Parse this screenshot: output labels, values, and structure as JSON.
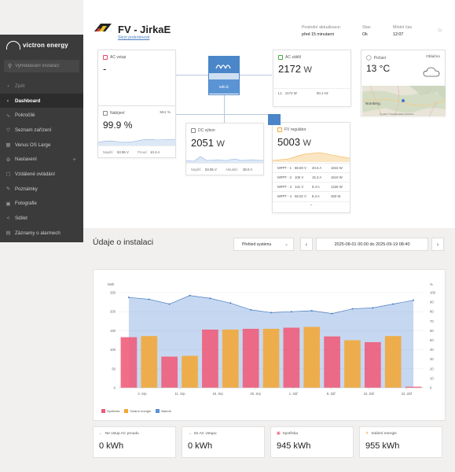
{
  "brand": {
    "logo_text": "victron energy"
  },
  "search": {
    "placeholder": "Vyhledávání instalací"
  },
  "nav": {
    "items": [
      {
        "label": "Zpět",
        "icon": "chevron-left-icon"
      },
      {
        "label": "Dashboard",
        "icon": "dashboard-icon"
      },
      {
        "label": "Pokročilé",
        "icon": "chart-icon"
      },
      {
        "label": "Seznam zařízení",
        "icon": "list-icon"
      },
      {
        "label": "Venus OS Large",
        "icon": "grid-icon"
      },
      {
        "label": "Nastavení",
        "icon": "gear-icon"
      },
      {
        "label": "Vzdálené ovládání",
        "icon": "remote-icon"
      },
      {
        "label": "Poznámky",
        "icon": "note-icon"
      },
      {
        "label": "Fotografie",
        "icon": "photo-icon"
      },
      {
        "label": "Sdílet",
        "icon": "share-icon"
      },
      {
        "label": "Záznamy o alarmech",
        "icon": "alarm-icon"
      }
    ]
  },
  "site": {
    "title": "FV - JirkaE",
    "link": "Skrýt podrobnosti",
    "last_update_label": "Poslední aktualizace:",
    "last_update_value": "před 15 minutami",
    "status_label": "Stav",
    "status_value": "Ok",
    "local_time_label": "Místní čas",
    "local_time_value": "12:07"
  },
  "cards": {
    "ac_input": {
      "label": "AC vstup",
      "value": "-"
    },
    "ac_loads": {
      "label": "AC zátěž",
      "value": "2172",
      "unit": "W",
      "row": [
        "L1",
        "2172 W",
        "50.1 Hz"
      ]
    },
    "location": {
      "label": "Počasí",
      "condition": "Oblačno",
      "temp": "13 °C",
      "map_city": "Nürnberg",
      "map_attribution": "© Leaflet, © OpenStreetMap contributors"
    },
    "battery": {
      "label": "Nabíjení",
      "aux": "561 %",
      "value": "99.9 %",
      "voltage_label": "Napětí",
      "voltage": "53.95 V",
      "current_label": "Proud",
      "current": "10.4 A"
    },
    "dc_system": {
      "label": "DC výkon",
      "value": "2051",
      "unit": "W",
      "voltage_label": "Napětí",
      "voltage": "53.95 V",
      "current_label": "Aktuální",
      "current": "38.0 A"
    },
    "pv": {
      "label": "FV regulátor",
      "value": "5003",
      "unit": "W",
      "rows": [
        [
          "MPPT - 1",
          "88.69 V",
          "20.6 A",
          "1843 W"
        ],
        [
          "MPPT - 2",
          "105 V",
          "15.3 A",
          "1610 W"
        ],
        [
          "MPPT - 3",
          "131 V",
          "9.4 A",
          "1226 W"
        ],
        [
          "MPPT - 4",
          "58.02 V",
          "8.3 A",
          "483 W"
        ]
      ]
    },
    "inverter": {
      "label": "Měnič"
    }
  },
  "section": {
    "title": "Údaje o instalaci",
    "view_select": "Přehled systému",
    "date_range": "2025-08-01 00:00 do 2025-09-19 08:40"
  },
  "chart_data": {
    "type": "bar",
    "ylabel_left": "kWh",
    "ylabel_right": "%",
    "ylim": [
      0,
      250
    ],
    "ylim_right": [
      0,
      100
    ],
    "y_ticks": [
      0,
      50,
      100,
      150,
      200,
      250
    ],
    "y_ticks_right": [
      0,
      10,
      20,
      30,
      40,
      50,
      60,
      70,
      80,
      90,
      100
    ],
    "x_ticks": [
      "4. Srp",
      "11. Srp",
      "18. Srp",
      "25. Srp",
      "1. Zář",
      "8. Zář",
      "15. Zář",
      "22. Zář"
    ],
    "series": [
      {
        "name": "Spotřeba",
        "color": "#f05a78",
        "values": [
          133,
          0,
          82,
          0,
          153,
          0,
          155,
          0,
          158,
          0,
          135,
          0,
          120,
          0,
          3
        ]
      },
      {
        "name": "Solární energie",
        "color": "#f4a634",
        "values": [
          0,
          136,
          0,
          84,
          0,
          153,
          0,
          155,
          0,
          160,
          0,
          125,
          0,
          136,
          0
        ]
      },
      {
        "name": "Baterie",
        "color": "#5b8fd6",
        "values": [
          95,
          93,
          88,
          97,
          94,
          89,
          82,
          79,
          80,
          81,
          78,
          83,
          84,
          88,
          92
        ],
        "unit": "%"
      }
    ]
  },
  "kpis": [
    {
      "label": "Ne vstup AC proudu",
      "value": "0 kWh",
      "icon": "arrow-left-icon"
    },
    {
      "label": "Ze AC vstupu",
      "value": "0 kWh",
      "icon": "arrow-right-icon"
    },
    {
      "label": "Spotřeba",
      "value": "945 kWh",
      "icon": "plug-icon"
    },
    {
      "label": "Solární energie",
      "value": "955 kWh",
      "icon": "sun-icon"
    }
  ],
  "colors": {
    "sidebar": "#3b3b3b",
    "accent": "#4a86c8",
    "consumption": "#f05a78",
    "solar": "#f4a634",
    "battery": "#5b8fd6"
  }
}
